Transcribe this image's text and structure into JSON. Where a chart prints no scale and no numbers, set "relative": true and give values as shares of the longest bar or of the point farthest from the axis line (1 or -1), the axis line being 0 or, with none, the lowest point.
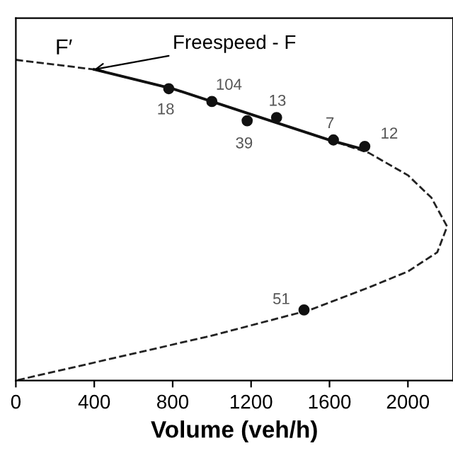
{
  "chart_data": {
    "type": "scatter",
    "relative": true,
    "xlabel": "Volume (veh/h)",
    "xlim": [
      0,
      2230
    ],
    "xticks": [
      0,
      400,
      800,
      1200,
      1600,
      2000
    ],
    "series": [
      {
        "type": "line",
        "line_style": "dashed",
        "color": "#222222",
        "x": [
          0,
          400,
          800,
          1200,
          1600,
          1800,
          2000,
          2120,
          2200,
          2150,
          2000,
          1800,
          1500,
          1000,
          500,
          0
        ],
        "values": [
          1.0,
          0.97,
          0.91,
          0.83,
          0.75,
          0.71,
          0.64,
          0.57,
          0.48,
          0.4,
          0.34,
          0.29,
          0.22,
          0.14,
          0.07,
          0.0
        ]
      },
      {
        "type": "line",
        "line_style": "solid",
        "color": "#111111",
        "x": [
          400,
          800,
          1200,
          1600,
          1780
        ],
        "values": [
          0.97,
          0.91,
          0.83,
          0.75,
          0.72
        ]
      },
      {
        "marker": "circle",
        "color": "#111111",
        "x": [
          780,
          1000,
          1180,
          1330,
          1620,
          1780,
          1470
        ],
        "values": [
          0.91,
          0.87,
          0.81,
          0.82,
          0.75,
          0.73,
          0.22
        ]
      }
    ],
    "annotations": [
      {
        "text": "18",
        "x": 780,
        "y": 0.91
      },
      {
        "text": "104",
        "x": 1000,
        "y": 0.87
      },
      {
        "text": "39",
        "x": 1180,
        "y": 0.81
      },
      {
        "text": "13",
        "x": 1330,
        "y": 0.82
      },
      {
        "text": "7",
        "x": 1620,
        "y": 0.75
      },
      {
        "text": "12",
        "x": 1780,
        "y": 0.73
      },
      {
        "text": "51",
        "x": 1470,
        "y": 0.22
      },
      {
        "text": "Freespeed - F",
        "x": 400,
        "y": 0.97
      },
      "F′"
    ],
    "grid": false
  }
}
